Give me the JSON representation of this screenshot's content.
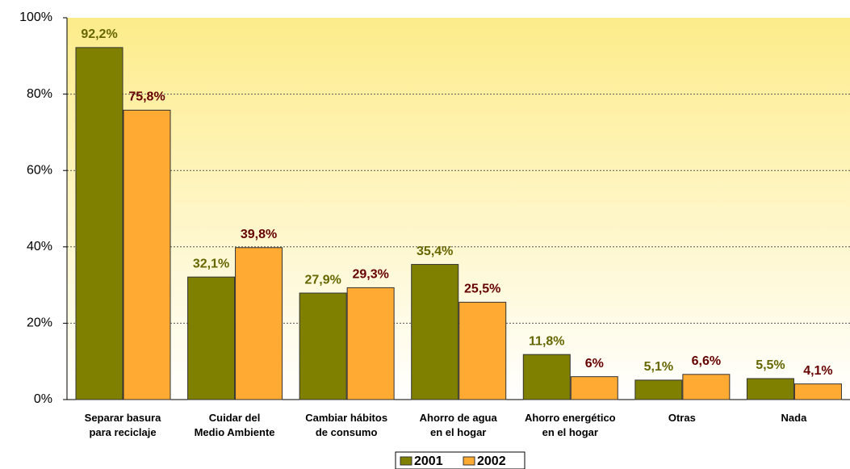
{
  "chart_data": {
    "type": "bar",
    "categories": [
      "Separar basura\npara reciclaje",
      "Cuidar del\nMedio Ambiente",
      "Cambiar hábitos\nde consumo",
      "Ahorro de agua\nen el hogar",
      "Ahorro energético\nen el hogar",
      "Otras",
      "Nada"
    ],
    "series": [
      {
        "name": "2001",
        "color": "#808000",
        "label_color": "#666600",
        "values": [
          92.2,
          32.1,
          27.9,
          35.4,
          11.8,
          5.1,
          5.5
        ],
        "value_labels": [
          "92,2%",
          "32,1%",
          "27,9%",
          "35,4%",
          "11,8%",
          "5,1%",
          "5,5%"
        ]
      },
      {
        "name": "2002",
        "color": "#ffaa33",
        "label_color": "#660000",
        "values": [
          75.8,
          39.8,
          29.3,
          25.5,
          6,
          6.6,
          4.1
        ],
        "value_labels": [
          "75,8%",
          "39,8%",
          "29,3%",
          "25,5%",
          "6%",
          "6,6%",
          "4,1%"
        ]
      }
    ],
    "ylim": [
      0,
      100
    ],
    "yticks": [
      {
        "value": 0,
        "label": "0%"
      },
      {
        "value": 20,
        "label": "20%"
      },
      {
        "value": 40,
        "label": "40%"
      },
      {
        "value": 60,
        "label": "60%"
      },
      {
        "value": 80,
        "label": "80%"
      },
      {
        "value": 100,
        "label": "100%"
      }
    ],
    "grid": true,
    "legend": "bottom"
  }
}
